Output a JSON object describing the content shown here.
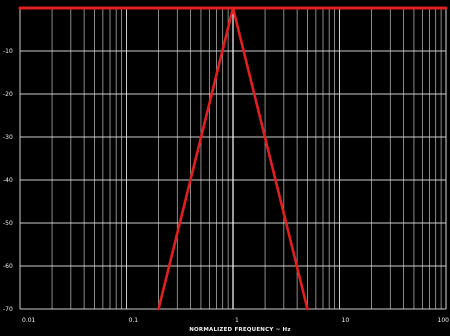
{
  "chart_data": {
    "type": "line",
    "xlabel": "NORMALIZED FREQUENCY ~ Hz",
    "ylabel": "",
    "x_scale": "log",
    "xlim": [
      0.01,
      100
    ],
    "ylim": [
      -70,
      0
    ],
    "grid": true,
    "x_tick_labels": [
      "0.01",
      "0.1",
      "1",
      "10",
      "100"
    ],
    "y_tick_labels": [
      "-10",
      "-20",
      "-30",
      "-40",
      "-50",
      "-60",
      "-70"
    ],
    "series": [
      {
        "color": "#e02020",
        "points": [
          [
            0.01,
            0
          ],
          [
            100,
            0
          ]
        ]
      },
      {
        "color": "#e02020",
        "points": [
          [
            0.2,
            -70
          ],
          [
            1,
            0
          ],
          [
            5,
            -70
          ]
        ]
      }
    ],
    "annotations": [
      {
        "type": "vertical-line",
        "x": 1,
        "color": "#ffffff"
      }
    ],
    "colors": {
      "background": "#000000",
      "grid": "#d8d8d8",
      "curve": "#e02020"
    }
  }
}
